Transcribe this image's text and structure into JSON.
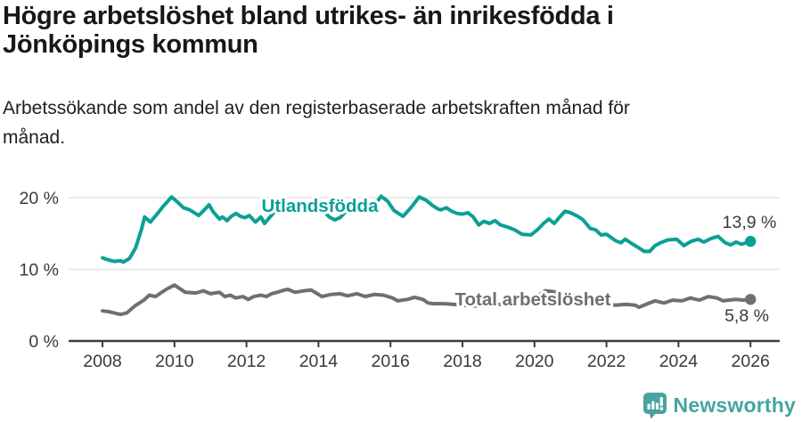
{
  "header": {
    "title_line1": "Högre arbetslöshet bland utrikes- än inrikesfödda i",
    "title_line2": "Jönköpings kommun",
    "subtitle_line1": "Arbetssökande som andel av den registerbaserade arbetskraften månad för",
    "subtitle_line2": "månad."
  },
  "footer": {
    "brand": "Newsworthy",
    "brand_color": "#47A49E",
    "logo_icon": "speech-bubble-bar-chart-icon"
  },
  "chart_data": {
    "type": "line",
    "title": "Högre arbetslöshet bland utrikes- än inrikesfödda i Jönköpings kommun",
    "subtitle": "Arbetssökande som andel av den registerbaserade arbetskraften månad för månad.",
    "unit": "%",
    "grid": "horizontal",
    "legend_position": "inline-on-lines",
    "x_axis": {
      "ticks": [
        2008,
        2010,
        2012,
        2014,
        2016,
        2018,
        2020,
        2022,
        2024,
        2026
      ],
      "range": [
        2008,
        2026
      ]
    },
    "y_axis": {
      "ticks": [
        0,
        10,
        20
      ],
      "tick_labels": [
        "0 %",
        "10 %",
        "20 %"
      ],
      "range": [
        0,
        24
      ]
    },
    "colors": {
      "axis": "#3d3d3d",
      "gridline": "#e2e2e2",
      "label_text": "#3a3a3a"
    },
    "series": [
      {
        "name": "Utlandsfödda",
        "color": "#0AA096",
        "end_value": 13.9,
        "end_label": "13,9 %",
        "points": [
          [
            2008.0,
            11.6
          ],
          [
            2008.17,
            11.3
          ],
          [
            2008.33,
            11.1
          ],
          [
            2008.5,
            11.2
          ],
          [
            2008.58,
            11.0
          ],
          [
            2008.75,
            11.5
          ],
          [
            2008.92,
            13.0
          ],
          [
            2009.08,
            15.5
          ],
          [
            2009.17,
            17.3
          ],
          [
            2009.33,
            16.6
          ],
          [
            2009.5,
            17.6
          ],
          [
            2009.67,
            18.7
          ],
          [
            2009.92,
            20.1
          ],
          [
            2010.08,
            19.4
          ],
          [
            2010.25,
            18.6
          ],
          [
            2010.42,
            18.3
          ],
          [
            2010.58,
            17.8
          ],
          [
            2010.67,
            17.5
          ],
          [
            2010.83,
            18.3
          ],
          [
            2010.96,
            19.0
          ],
          [
            2011.08,
            18.0
          ],
          [
            2011.25,
            17.0
          ],
          [
            2011.33,
            17.3
          ],
          [
            2011.46,
            16.8
          ],
          [
            2011.58,
            17.4
          ],
          [
            2011.71,
            17.8
          ],
          [
            2011.83,
            17.4
          ],
          [
            2011.96,
            17.2
          ],
          [
            2012.08,
            17.5
          ],
          [
            2012.25,
            16.6
          ],
          [
            2012.4,
            17.3
          ],
          [
            2012.5,
            16.4
          ],
          [
            2012.67,
            17.4
          ],
          [
            2012.83,
            18.3
          ],
          [
            2013.0,
            18.8
          ],
          [
            2013.17,
            18.5
          ],
          [
            2013.35,
            17.9
          ],
          [
            2013.5,
            18.6
          ],
          [
            2013.67,
            19.0
          ],
          [
            2013.83,
            19.2
          ],
          [
            2014.0,
            18.6
          ],
          [
            2014.17,
            18.0
          ],
          [
            2014.3,
            17.3
          ],
          [
            2014.45,
            16.9
          ],
          [
            2014.6,
            17.2
          ],
          [
            2014.75,
            18.0
          ],
          [
            2015.0,
            18.3
          ],
          [
            2015.2,
            18.6
          ],
          [
            2015.4,
            18.4
          ],
          [
            2015.6,
            19.2
          ],
          [
            2015.74,
            20.2
          ],
          [
            2015.92,
            19.5
          ],
          [
            2016.1,
            18.2
          ],
          [
            2016.35,
            17.4
          ],
          [
            2016.55,
            18.5
          ],
          [
            2016.8,
            20.1
          ],
          [
            2017.0,
            19.6
          ],
          [
            2017.17,
            18.9
          ],
          [
            2017.33,
            18.4
          ],
          [
            2017.4,
            18.3
          ],
          [
            2017.55,
            18.6
          ],
          [
            2017.7,
            18.1
          ],
          [
            2017.85,
            17.8
          ],
          [
            2018.0,
            17.7
          ],
          [
            2018.15,
            17.9
          ],
          [
            2018.3,
            17.3
          ],
          [
            2018.45,
            16.2
          ],
          [
            2018.6,
            16.7
          ],
          [
            2018.75,
            16.4
          ],
          [
            2018.9,
            16.8
          ],
          [
            2019.05,
            16.2
          ],
          [
            2019.25,
            15.9
          ],
          [
            2019.45,
            15.5
          ],
          [
            2019.65,
            14.9
          ],
          [
            2019.9,
            14.8
          ],
          [
            2020.1,
            15.6
          ],
          [
            2020.25,
            16.4
          ],
          [
            2020.4,
            17.0
          ],
          [
            2020.55,
            16.4
          ],
          [
            2020.7,
            17.3
          ],
          [
            2020.85,
            18.1
          ],
          [
            2021.0,
            17.9
          ],
          [
            2021.2,
            17.4
          ],
          [
            2021.35,
            16.9
          ],
          [
            2021.55,
            15.7
          ],
          [
            2021.7,
            15.5
          ],
          [
            2021.85,
            14.8
          ],
          [
            2022.0,
            14.9
          ],
          [
            2022.25,
            14.0
          ],
          [
            2022.4,
            13.7
          ],
          [
            2022.52,
            14.2
          ],
          [
            2022.7,
            13.6
          ],
          [
            2022.9,
            13.0
          ],
          [
            2023.05,
            12.5
          ],
          [
            2023.2,
            12.5
          ],
          [
            2023.35,
            13.3
          ],
          [
            2023.5,
            13.7
          ],
          [
            2023.7,
            14.1
          ],
          [
            2023.95,
            14.2
          ],
          [
            2024.15,
            13.3
          ],
          [
            2024.35,
            13.9
          ],
          [
            2024.55,
            14.2
          ],
          [
            2024.7,
            13.8
          ],
          [
            2024.9,
            14.3
          ],
          [
            2025.1,
            14.6
          ],
          [
            2025.3,
            13.7
          ],
          [
            2025.45,
            13.4
          ],
          [
            2025.6,
            13.8
          ],
          [
            2025.75,
            13.5
          ],
          [
            2026.0,
            13.9
          ]
        ]
      },
      {
        "name": "Total arbetslöshet",
        "color": "#6F6F73",
        "end_value": 5.8,
        "end_label": "5,8 %",
        "points": [
          [
            2008.0,
            4.2
          ],
          [
            2008.17,
            4.1
          ],
          [
            2008.33,
            3.9
          ],
          [
            2008.5,
            3.7
          ],
          [
            2008.67,
            3.9
          ],
          [
            2008.9,
            4.9
          ],
          [
            2009.15,
            5.7
          ],
          [
            2009.3,
            6.4
          ],
          [
            2009.47,
            6.2
          ],
          [
            2009.77,
            7.2
          ],
          [
            2010.0,
            7.8
          ],
          [
            2010.3,
            6.8
          ],
          [
            2010.6,
            6.7
          ],
          [
            2010.8,
            7.0
          ],
          [
            2011.0,
            6.6
          ],
          [
            2011.25,
            6.8
          ],
          [
            2011.4,
            6.2
          ],
          [
            2011.55,
            6.4
          ],
          [
            2011.7,
            6.0
          ],
          [
            2011.9,
            6.2
          ],
          [
            2012.05,
            5.8
          ],
          [
            2012.2,
            6.2
          ],
          [
            2012.4,
            6.4
          ],
          [
            2012.55,
            6.2
          ],
          [
            2012.7,
            6.6
          ],
          [
            2012.85,
            6.8
          ],
          [
            2013.05,
            7.1
          ],
          [
            2013.15,
            7.2
          ],
          [
            2013.35,
            6.8
          ],
          [
            2013.6,
            7.0
          ],
          [
            2013.8,
            7.1
          ],
          [
            2014.1,
            6.2
          ],
          [
            2014.35,
            6.5
          ],
          [
            2014.6,
            6.6
          ],
          [
            2014.8,
            6.3
          ],
          [
            2015.07,
            6.6
          ],
          [
            2015.3,
            6.2
          ],
          [
            2015.56,
            6.5
          ],
          [
            2015.8,
            6.4
          ],
          [
            2016.06,
            6.0
          ],
          [
            2016.2,
            5.6
          ],
          [
            2016.47,
            5.8
          ],
          [
            2016.67,
            6.1
          ],
          [
            2016.9,
            5.8
          ],
          [
            2017.04,
            5.3
          ],
          [
            2017.2,
            5.2
          ],
          [
            2017.5,
            5.2
          ],
          [
            2017.75,
            5.1
          ],
          [
            2018.0,
            5.0
          ],
          [
            2018.25,
            4.9
          ],
          [
            2018.5,
            4.9
          ],
          [
            2018.75,
            5.0
          ],
          [
            2019.0,
            5.1
          ],
          [
            2019.25,
            5.2
          ],
          [
            2019.5,
            5.3
          ],
          [
            2019.75,
            5.5
          ],
          [
            2020.0,
            6.0
          ],
          [
            2020.3,
            7.0
          ],
          [
            2020.5,
            6.9
          ],
          [
            2020.75,
            6.7
          ],
          [
            2021.0,
            6.4
          ],
          [
            2021.25,
            6.1
          ],
          [
            2021.5,
            5.8
          ],
          [
            2021.75,
            5.5
          ],
          [
            2022.0,
            5.2
          ],
          [
            2022.25,
            5.0
          ],
          [
            2022.54,
            5.1
          ],
          [
            2022.8,
            5.0
          ],
          [
            2022.9,
            4.7
          ],
          [
            2023.1,
            5.1
          ],
          [
            2023.35,
            5.6
          ],
          [
            2023.6,
            5.3
          ],
          [
            2023.84,
            5.7
          ],
          [
            2024.1,
            5.6
          ],
          [
            2024.33,
            6.0
          ],
          [
            2024.58,
            5.7
          ],
          [
            2024.83,
            6.2
          ],
          [
            2025.07,
            6.0
          ],
          [
            2025.24,
            5.6
          ],
          [
            2025.4,
            5.7
          ],
          [
            2025.6,
            5.8
          ],
          [
            2025.8,
            5.7
          ],
          [
            2026.0,
            5.8
          ]
        ]
      }
    ]
  }
}
